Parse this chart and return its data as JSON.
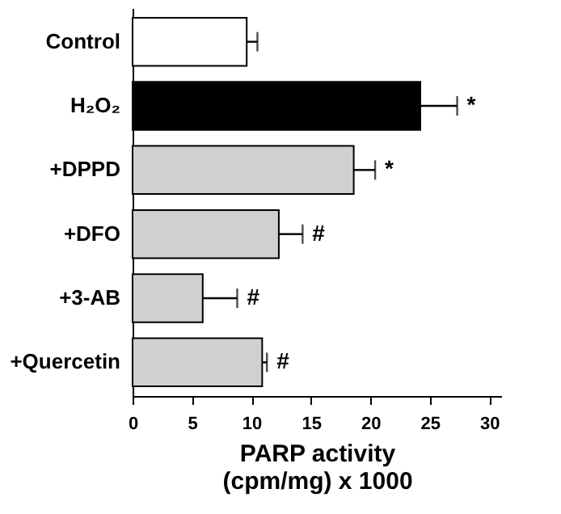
{
  "chart_data": {
    "type": "bar",
    "orientation": "horizontal",
    "categories": [
      "Control",
      "H₂O₂",
      "+DPPD",
      "+DFO",
      "+3-AB",
      "+Quercetin"
    ],
    "values": [
      9.6,
      24.2,
      18.6,
      12.3,
      5.9,
      10.9
    ],
    "errors": [
      0.9,
      3.1,
      1.8,
      2.0,
      2.9,
      0.4
    ],
    "colors": [
      "#ffffff",
      "#000000",
      "#d0d0d0",
      "#d0d0d0",
      "#d0d0d0",
      "#d0d0d0"
    ],
    "xlabel": "PARP activity\n(cpm/mg) x 1000",
    "xlim": [
      0,
      31
    ],
    "xticks": [
      0,
      5,
      10,
      15,
      20,
      25,
      30
    ],
    "grid": false,
    "annotations": [
      {
        "text": "*",
        "x": 27.3,
        "y": "H₂O₂"
      },
      {
        "text": "*",
        "x": 20.4,
        "y": "+DPPD"
      },
      {
        "text": "#",
        "x": 14.3,
        "y": "+DFO"
      },
      {
        "text": "#",
        "x": 8.8,
        "y": "+3-AB"
      },
      {
        "text": "#",
        "x": 11.3,
        "y": "+Quercetin"
      }
    ]
  }
}
